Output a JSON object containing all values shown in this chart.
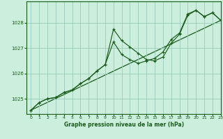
{
  "background_color": "#cceedd",
  "plot_bg_color": "#cceedd",
  "grid_color": "#99ccbb",
  "line_color": "#1a5c1a",
  "marker_color": "#1a5c1a",
  "title": "Graphe pression niveau de la mer (hPa)",
  "xlim": [
    -0.5,
    23
  ],
  "ylim": [
    1024.4,
    1028.85
  ],
  "yticks": [
    1025,
    1026,
    1027,
    1028
  ],
  "xticks": [
    0,
    1,
    2,
    3,
    4,
    5,
    6,
    7,
    8,
    9,
    10,
    11,
    12,
    13,
    14,
    15,
    16,
    17,
    18,
    19,
    20,
    21,
    22,
    23
  ],
  "series1": [
    1024.55,
    1024.85,
    1025.0,
    1025.05,
    1025.25,
    1025.35,
    1025.6,
    1025.8,
    1026.1,
    1026.35,
    1027.75,
    1027.3,
    1027.05,
    1026.8,
    1026.55,
    1026.5,
    1026.65,
    1027.2,
    1027.55,
    1028.3,
    1028.5,
    1028.25,
    1028.4,
    1028.1
  ],
  "series2": [
    1024.55,
    1024.85,
    1025.0,
    1025.05,
    1025.25,
    1025.35,
    1025.6,
    1025.8,
    1026.1,
    1026.35,
    1027.25,
    1026.75,
    1026.55,
    1026.4,
    1026.5,
    1026.6,
    1026.85,
    1027.35,
    1027.6,
    1028.35,
    1028.5,
    1028.25,
    1028.4,
    1028.1
  ],
  "series3_x": [
    0,
    23
  ],
  "series3_y": [
    1024.55,
    1028.1
  ]
}
